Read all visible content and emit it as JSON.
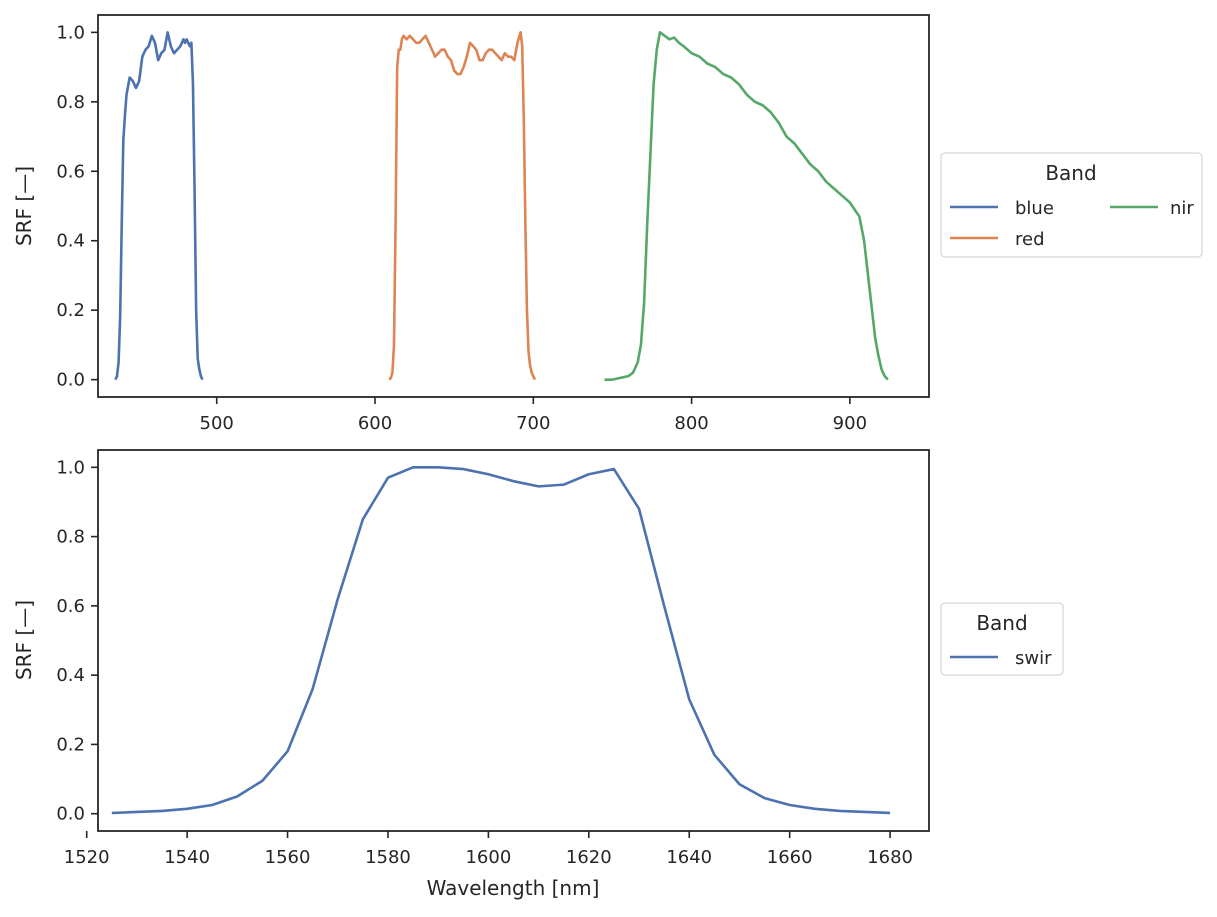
{
  "chart_data": [
    {
      "type": "line",
      "ylabel": "SRF [—]",
      "xlabel": "",
      "xlim": [
        425,
        950
      ],
      "ylim": [
        -0.05,
        1.05
      ],
      "xticks": [
        500,
        600,
        700,
        800,
        900
      ],
      "xtick_labels": [
        "500",
        "600",
        "700",
        "800",
        "900"
      ],
      "yticks": [
        0.0,
        0.2,
        0.4,
        0.6,
        0.8,
        1.0
      ],
      "ytick_labels": [
        "0.0",
        "0.2",
        "0.4",
        "0.6",
        "0.8",
        "1.0"
      ],
      "grid": false,
      "legend": {
        "title": "Band",
        "placement": "outside-right",
        "columns": 2,
        "entries": [
          "blue",
          "red",
          "nir"
        ]
      },
      "series": [
        {
          "name": "blue",
          "color": "#4c72b0",
          "x": [
            436,
            437,
            438,
            439,
            440,
            441,
            442,
            443,
            445,
            447,
            449,
            451,
            453,
            455,
            457,
            459,
            461,
            463,
            465,
            467,
            469,
            471,
            473,
            475,
            477,
            479,
            480,
            481,
            482,
            483,
            484,
            485,
            486,
            487,
            488,
            489,
            490,
            491
          ],
          "y": [
            0.0,
            0.01,
            0.05,
            0.18,
            0.45,
            0.69,
            0.76,
            0.82,
            0.87,
            0.86,
            0.84,
            0.86,
            0.93,
            0.95,
            0.96,
            0.99,
            0.97,
            0.92,
            0.94,
            0.95,
            1.0,
            0.96,
            0.94,
            0.95,
            0.96,
            0.98,
            0.97,
            0.98,
            0.97,
            0.96,
            0.97,
            0.85,
            0.55,
            0.2,
            0.06,
            0.03,
            0.01,
            0.0
          ]
        },
        {
          "name": "red",
          "color": "#dd8452",
          "x": [
            609,
            610,
            611,
            612,
            613,
            614,
            615,
            616,
            617,
            618,
            620,
            622,
            624,
            626,
            628,
            630,
            632,
            634,
            636,
            638,
            640,
            642,
            644,
            646,
            648,
            650,
            652,
            654,
            656,
            658,
            660,
            662,
            664,
            666,
            668,
            670,
            672,
            674,
            676,
            678,
            680,
            682,
            684,
            686,
            688,
            690,
            692,
            693,
            694,
            695,
            696,
            697,
            698,
            699,
            700,
            701
          ],
          "y": [
            0.0,
            0.005,
            0.02,
            0.1,
            0.45,
            0.9,
            0.95,
            0.95,
            0.98,
            0.99,
            0.98,
            0.99,
            0.98,
            0.97,
            0.97,
            0.98,
            0.99,
            0.97,
            0.95,
            0.93,
            0.94,
            0.95,
            0.95,
            0.93,
            0.92,
            0.89,
            0.88,
            0.88,
            0.9,
            0.93,
            0.97,
            0.96,
            0.95,
            0.92,
            0.92,
            0.94,
            0.95,
            0.95,
            0.94,
            0.93,
            0.92,
            0.94,
            0.93,
            0.93,
            0.92,
            0.97,
            1.0,
            0.96,
            0.75,
            0.45,
            0.2,
            0.08,
            0.04,
            0.02,
            0.01,
            0.0
          ]
        },
        {
          "name": "nir",
          "color": "#55a868",
          "x": [
            745,
            750,
            755,
            760,
            763,
            766,
            768,
            770,
            772,
            774,
            776,
            778,
            780,
            783,
            786,
            789,
            792,
            795,
            800,
            805,
            810,
            815,
            820,
            825,
            830,
            835,
            840,
            845,
            850,
            855,
            860,
            865,
            870,
            875,
            880,
            885,
            890,
            895,
            900,
            903,
            906,
            909,
            912,
            914,
            916,
            918,
            920,
            922,
            924
          ],
          "y": [
            0.0,
            0.0,
            0.005,
            0.01,
            0.02,
            0.05,
            0.1,
            0.22,
            0.45,
            0.65,
            0.85,
            0.95,
            1.0,
            0.99,
            0.98,
            0.985,
            0.97,
            0.96,
            0.94,
            0.93,
            0.91,
            0.9,
            0.88,
            0.87,
            0.85,
            0.82,
            0.8,
            0.79,
            0.77,
            0.74,
            0.7,
            0.68,
            0.65,
            0.62,
            0.6,
            0.57,
            0.55,
            0.53,
            0.51,
            0.49,
            0.47,
            0.4,
            0.28,
            0.2,
            0.12,
            0.07,
            0.03,
            0.01,
            0.0
          ]
        }
      ]
    },
    {
      "type": "line",
      "ylabel": "SRF [—]",
      "xlabel": "Wavelength [nm]",
      "xlim": [
        1522.25,
        1687.75
      ],
      "ylim": [
        -0.05,
        1.05
      ],
      "xticks": [
        1520,
        1540,
        1560,
        1580,
        1600,
        1620,
        1640,
        1660,
        1680
      ],
      "xtick_labels": [
        "1520",
        "1540",
        "1560",
        "1580",
        "1600",
        "1620",
        "1640",
        "1660",
        "1680"
      ],
      "yticks": [
        0.0,
        0.2,
        0.4,
        0.6,
        0.8,
        1.0
      ],
      "ytick_labels": [
        "0.0",
        "0.2",
        "0.4",
        "0.6",
        "0.8",
        "1.0"
      ],
      "grid": false,
      "legend": {
        "title": "Band",
        "placement": "outside-right",
        "columns": 1,
        "entries": [
          "swir"
        ]
      },
      "series": [
        {
          "name": "swir",
          "color": "#4c72b0",
          "x": [
            1525,
            1530,
            1535,
            1540,
            1545,
            1550,
            1555,
            1560,
            1565,
            1570,
            1575,
            1580,
            1585,
            1590,
            1595,
            1600,
            1605,
            1610,
            1615,
            1620,
            1625,
            1630,
            1635,
            1640,
            1645,
            1650,
            1655,
            1660,
            1665,
            1670,
            1675,
            1680
          ],
          "y": [
            0.002,
            0.005,
            0.008,
            0.014,
            0.025,
            0.05,
            0.095,
            0.18,
            0.36,
            0.62,
            0.85,
            0.97,
            1.0,
            1.0,
            0.995,
            0.98,
            0.96,
            0.945,
            0.95,
            0.98,
            0.995,
            0.88,
            0.6,
            0.33,
            0.17,
            0.085,
            0.045,
            0.025,
            0.014,
            0.008,
            0.005,
            0.002
          ]
        }
      ]
    }
  ]
}
